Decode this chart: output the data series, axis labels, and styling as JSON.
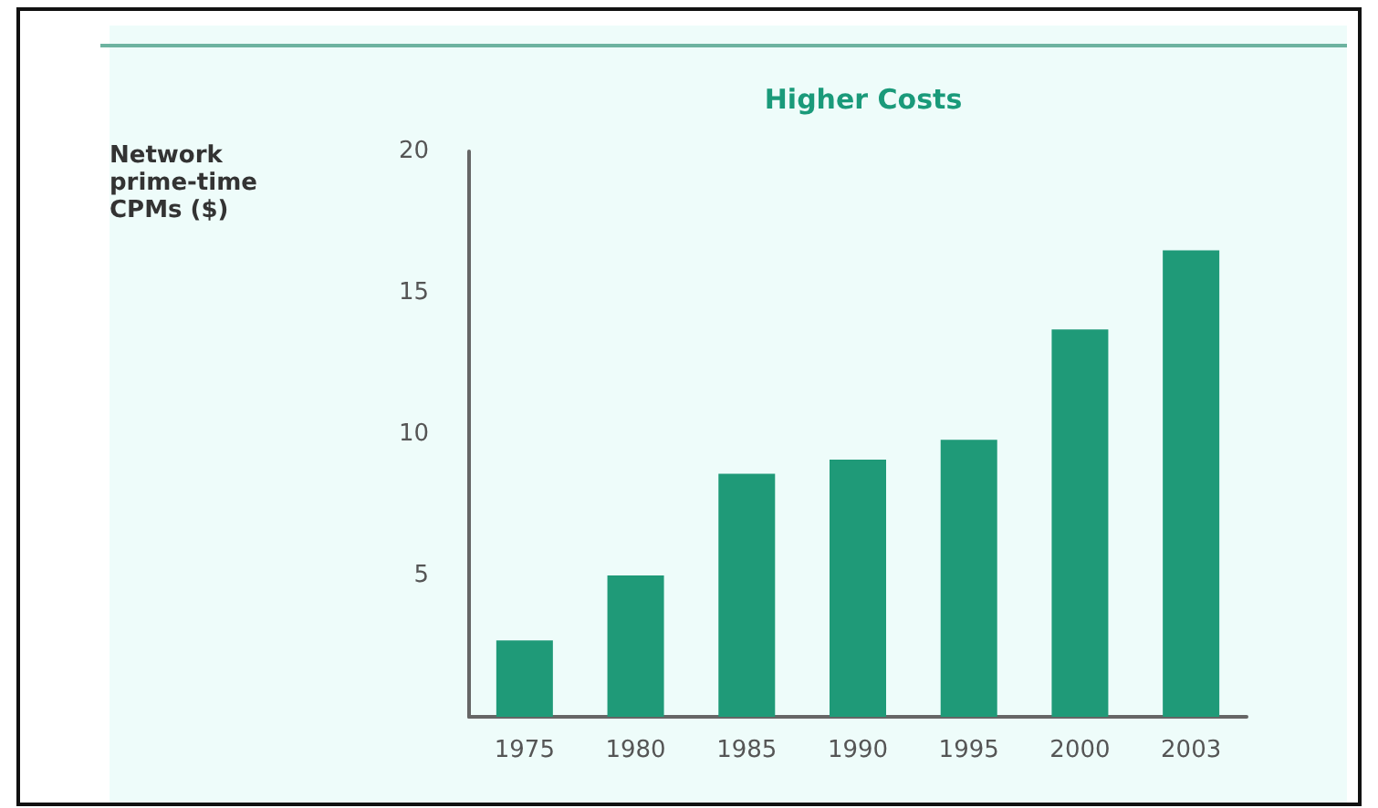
{
  "chart_data": {
    "type": "bar",
    "title": "Higher Costs",
    "annotations": [
      "Network\nprime-time\nCPMs ($)"
    ],
    "categories": [
      "1975",
      "1980",
      "1985",
      "1990",
      "1995",
      "2000",
      "2003"
    ],
    "values": [
      2.7,
      5.0,
      8.6,
      9.1,
      9.8,
      13.7,
      16.5
    ],
    "color": "#1f9a78",
    "ylim": [
      0,
      20
    ],
    "yticks": [
      5,
      10,
      15,
      20
    ],
    "grid": false
  }
}
